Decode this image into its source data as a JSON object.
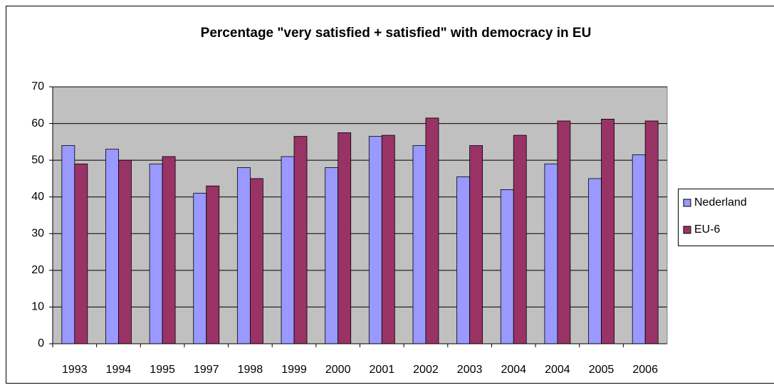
{
  "chart_data": {
    "type": "bar",
    "title": "Percentage \"very satisfied + satisfied\" with democracy in EU",
    "categories": [
      "1993",
      "1994",
      "1995",
      "1997",
      "1998",
      "1999",
      "2000",
      "2001",
      "2002",
      "2003",
      "2004",
      "2004",
      "2005",
      "2006"
    ],
    "series": [
      {
        "name": "Nederland",
        "color": "#9999ff",
        "values": [
          54,
          53,
          49,
          41,
          48,
          51,
          48,
          56.5,
          54,
          45.5,
          42,
          49,
          45,
          51.5
        ]
      },
      {
        "name": "EU-6",
        "color": "#993366",
        "values": [
          49,
          50,
          51,
          43,
          45,
          56.5,
          57.5,
          56.8,
          61.5,
          54,
          56.8,
          60.7,
          61.2,
          60.7
        ]
      }
    ],
    "ylim": [
      0,
      70
    ],
    "yticks": [
      0,
      10,
      20,
      30,
      40,
      50,
      60,
      70
    ],
    "grid": true,
    "legend": "right",
    "plot_background": "#c0c0c0"
  }
}
